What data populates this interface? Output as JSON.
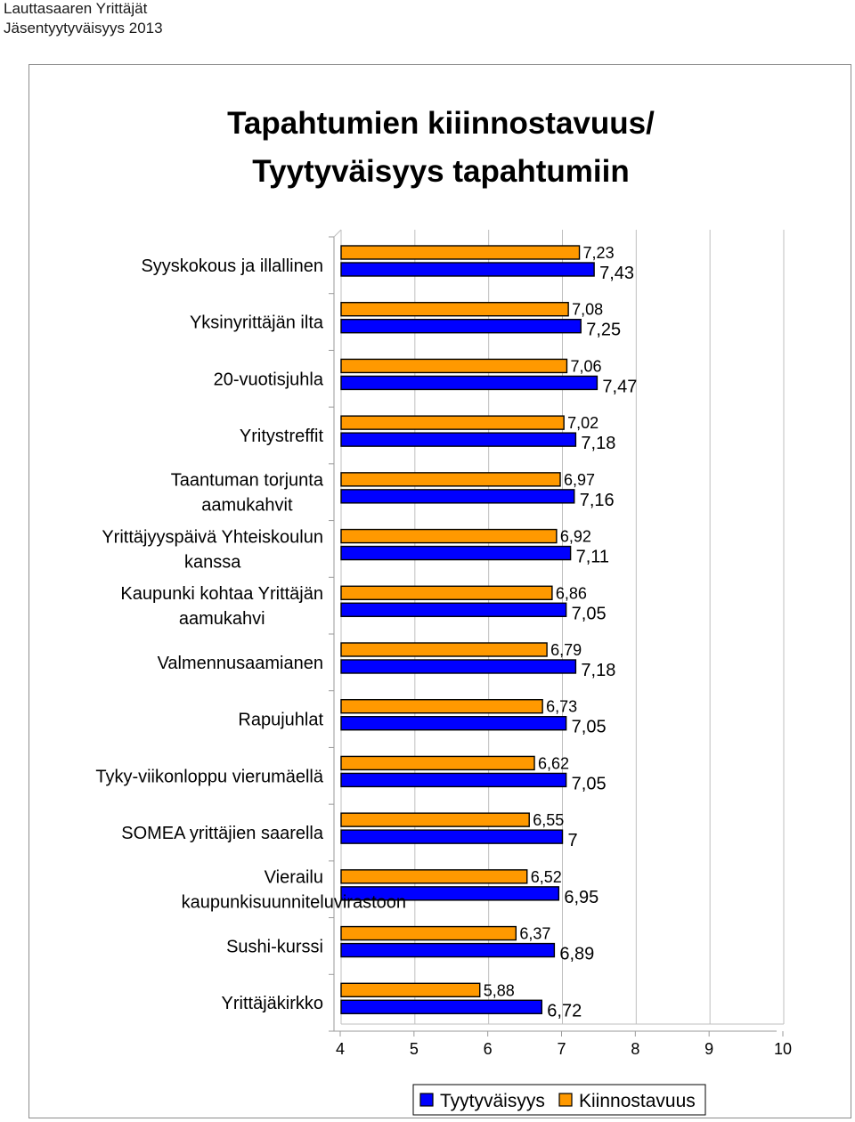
{
  "header": {
    "line1": "Lauttasaaren Yrittäjät",
    "line2": "Jäsentyytyväisyys 2013"
  },
  "chart_data": {
    "type": "bar",
    "orientation": "horizontal",
    "title_line1": "Tapahtumien kiiinnostavuus/",
    "title_line2": "Tyytyväisyys tapahtumiin",
    "categories": [
      [
        "Syyskokous ja illallinen"
      ],
      [
        "Yksinyrittäjän ilta"
      ],
      [
        "20-vuotisjuhla"
      ],
      [
        "Yritystreffit"
      ],
      [
        "Taantuman torjunta",
        "aamukahvit"
      ],
      [
        "Yrittäjyyspäivä Yhteiskoulun",
        "kanssa"
      ],
      [
        "Kaupunki kohtaa Yrittäjän",
        "aamukahvi"
      ],
      [
        "Valmennusaamianen"
      ],
      [
        "Rapujuhlat"
      ],
      [
        "Tyky-viikonloppu vierumäellä"
      ],
      [
        "SOMEA yrittäjien saarella"
      ],
      [
        "Vierailu",
        "kaupunkisuunniteluvirastoon"
      ],
      [
        "Sushi-kurssi"
      ],
      [
        "Yrittäjäkirkko"
      ]
    ],
    "series": [
      {
        "name": "Kiinnostavuus",
        "color": "#ff9900",
        "values": [
          7.23,
          7.08,
          7.06,
          7.02,
          6.97,
          6.92,
          6.86,
          6.79,
          6.73,
          6.62,
          6.55,
          6.52,
          6.37,
          5.88
        ],
        "labels": [
          "7,23",
          "7,08",
          "7,06",
          "7,02",
          "6,97",
          "6,92",
          "6,86",
          "6,79",
          "6,73",
          "6,62",
          "6,55",
          "6,52",
          "6,37",
          "5,88"
        ]
      },
      {
        "name": "Tyytyväisyys",
        "color": "#0000ff",
        "values": [
          7.43,
          7.25,
          7.47,
          7.18,
          7.16,
          7.11,
          7.05,
          7.18,
          7.05,
          7.05,
          7,
          6.95,
          6.89,
          6.72
        ],
        "labels": [
          "7,43",
          "7,25",
          "7,47",
          "7,18",
          "7,16",
          "7,11",
          "7,05",
          "7,18",
          "7,05",
          "7,05",
          "7",
          "6,95",
          "6,89",
          "6,72"
        ]
      }
    ],
    "xlim": [
      4,
      10
    ],
    "xticks": [
      "4",
      "5",
      "6",
      "7",
      "8",
      "9",
      "10"
    ],
    "grid": true,
    "legend": {
      "position": "bottom",
      "items": [
        {
          "name": "Tyytyväisyys",
          "color": "#0000ff"
        },
        {
          "name": "Kiinnostavuus",
          "color": "#ff9900"
        }
      ]
    }
  }
}
